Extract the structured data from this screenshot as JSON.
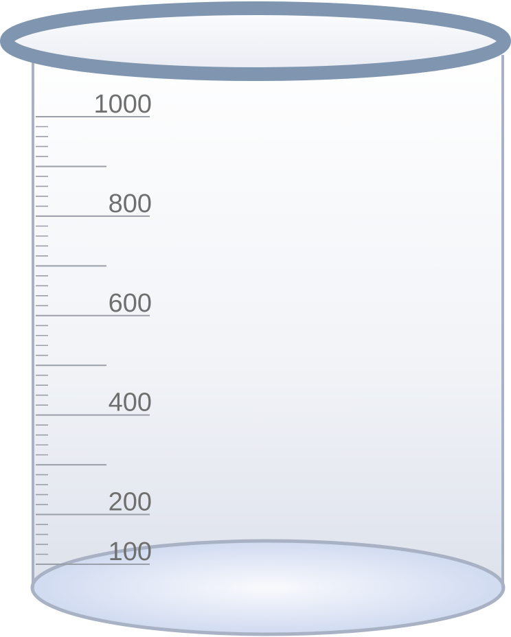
{
  "beaker": {
    "rim_color": "#7f95b0",
    "wall_color": "#a8b2c4",
    "base_color": "#c9d5ec",
    "tick_color": "#9a9ea6",
    "label_color": "#6f6f6f"
  },
  "scale": {
    "max_value": 1000,
    "minor_step": 20,
    "labels": [
      {
        "value": 1000,
        "text": "1000"
      },
      {
        "value": 800,
        "text": "800"
      },
      {
        "value": 600,
        "text": "600"
      },
      {
        "value": 400,
        "text": "400"
      },
      {
        "value": 200,
        "text": "200"
      },
      {
        "value": 100,
        "text": "100"
      }
    ]
  }
}
